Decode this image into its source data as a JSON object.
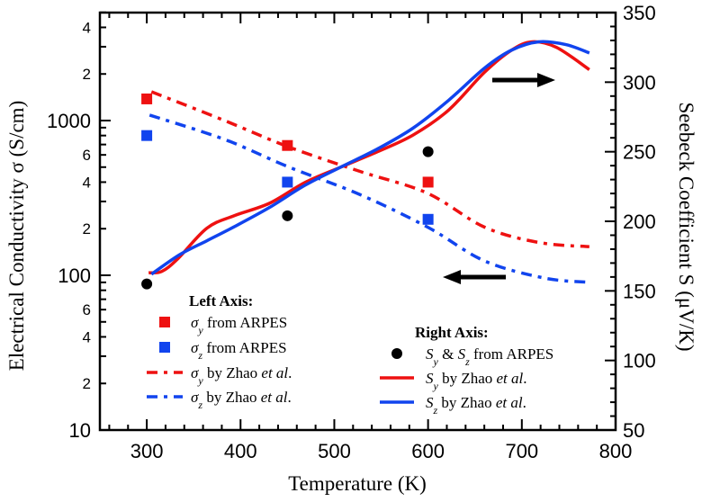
{
  "chart_data": {
    "type": "scatter",
    "title": "",
    "xlabel": "Temperature (K)",
    "ylabel_left": "Electrical Conductivity σ (S/cm)",
    "ylabel_right": "Seebeck Coefficient S (μV/K)",
    "xlim": [
      250,
      800
    ],
    "ylim_left": [
      10,
      5000
    ],
    "ylim_left_scale": "log",
    "ylim_right": [
      50,
      350
    ],
    "x_ticks": [
      300,
      400,
      500,
      600,
      700,
      800
    ],
    "x_tick_labels": [
      "300",
      "400",
      "500",
      "600",
      "700",
      "800"
    ],
    "y_left_ticks": [
      {
        "value": 10,
        "label": "10",
        "major": true
      },
      {
        "value": 20,
        "label": "2",
        "major": false
      },
      {
        "value": 40,
        "label": "4",
        "major": false
      },
      {
        "value": 60,
        "label": "6",
        "major": false
      },
      {
        "value": 100,
        "label": "100",
        "major": true
      },
      {
        "value": 200,
        "label": "2",
        "major": false
      },
      {
        "value": 400,
        "label": "4",
        "major": false
      },
      {
        "value": 600,
        "label": "6",
        "major": false
      },
      {
        "value": 1000,
        "label": "1000",
        "major": true
      },
      {
        "value": 2000,
        "label": "2",
        "major": false
      },
      {
        "value": 4000,
        "label": "4",
        "major": false
      }
    ],
    "y_right_ticks": [
      50,
      100,
      150,
      200,
      250,
      300,
      350
    ],
    "y_right_tick_labels": [
      "50",
      "100",
      "150",
      "200",
      "250",
      "300",
      "350"
    ],
    "grid": false,
    "series": [
      {
        "name": "σy from ARPES",
        "axis": "left",
        "kind": "marker-square",
        "color": "#ee1111",
        "x": [
          300,
          450,
          600
        ],
        "y": [
          1380,
          690,
          400
        ]
      },
      {
        "name": "σz from ARPES",
        "axis": "left",
        "kind": "marker-square",
        "color": "#1144ee",
        "x": [
          300,
          450,
          600
        ],
        "y": [
          800,
          400,
          230
        ]
      },
      {
        "name": "σy by Zhao et al.",
        "axis": "left",
        "kind": "line-dashdot",
        "color": "#ee1111",
        "x": [
          305,
          383,
          450,
          527,
          599,
          660,
          718,
          772
        ],
        "y": [
          1535,
          1000,
          680,
          470,
          340,
          205,
          163,
          153
        ]
      },
      {
        "name": "σz by Zhao et al.",
        "axis": "left",
        "kind": "line-dashdot",
        "color": "#1144ee",
        "x": [
          303,
          383,
          450,
          527,
          600,
          660,
          724,
          772
        ],
        "y": [
          1085,
          755,
          505,
          333,
          204,
          124,
          96,
          90
        ]
      },
      {
        "name": "Sy & Sz from ARPES",
        "axis": "right",
        "kind": "marker-circle",
        "color": "#000000",
        "x": [
          300,
          450,
          600
        ],
        "y": [
          155,
          204,
          250
        ]
      },
      {
        "name": "Sy by Zhao et al.",
        "axis": "right",
        "kind": "line-solid",
        "color": "#ee1111",
        "x": [
          302,
          316,
          333,
          364,
          393,
          431,
          469,
          507,
          546,
          584,
          622,
          660,
          689,
          711,
          737,
          772
        ],
        "y": [
          163,
          164,
          173,
          195,
          204,
          213,
          228,
          239,
          250,
          262,
          280,
          307,
          323,
          329,
          325,
          309
        ]
      },
      {
        "name": "Sz by Zhao et al.",
        "axis": "right",
        "kind": "line-solid",
        "color": "#1144ee",
        "x": [
          305,
          335,
          364,
          393,
          431,
          469,
          507,
          546,
          584,
          622,
          660,
          689,
          718,
          747,
          772
        ],
        "y": [
          162,
          176,
          186,
          196,
          210,
          226,
          239,
          252,
          267,
          287,
          310,
          323,
          329,
          327,
          321
        ]
      }
    ],
    "annotations": [
      {
        "type": "arrow",
        "direction": "right",
        "meaning": "solid curves refer to right axis",
        "from": [
          655,
          300
        ],
        "to": [
          715,
          300
        ],
        "axis": "right"
      },
      {
        "type": "arrow",
        "direction": "left",
        "meaning": "dash-dot curves refer to left axis",
        "from": [
          682,
          160
        ],
        "to": [
          615,
          160
        ],
        "axis": "mixed"
      }
    ],
    "legend": {
      "left_group": {
        "title": "Left Axis:",
        "placement": "lower-left",
        "entries": [
          {
            "label_sym": "σ",
            "label_sub": "y",
            "label_rest": " from ARPES",
            "label_it": "",
            "label_end": ""
          },
          {
            "label_sym": "σ",
            "label_sub": "z",
            "label_rest": " from ARPES",
            "label_it": "",
            "label_end": ""
          },
          {
            "label_sym": "σ",
            "label_sub": "y",
            "label_rest": " by Zhao ",
            "label_it": "et al",
            "label_end": "."
          },
          {
            "label_sym": "σ",
            "label_sub": "z",
            "label_rest": " by Zhao ",
            "label_it": "et al",
            "label_end": "."
          }
        ]
      },
      "right_group": {
        "title": "Right Axis:",
        "placement": "lower-center",
        "entries": [
          {
            "label_sym": "S",
            "label_sub": "y",
            "label_rest": " & ",
            "label_sym2": "S",
            "label_sub2": "z",
            "label_tail": " from ARPES"
          },
          {
            "label_sym": "S",
            "label_sub": "y",
            "label_rest": " by Zhao ",
            "label_it": "et al",
            "label_end": "."
          },
          {
            "label_sym": "S",
            "label_sub": "z",
            "label_rest": " by Zhao ",
            "label_it": "et al",
            "label_end": "."
          }
        ]
      }
    }
  }
}
